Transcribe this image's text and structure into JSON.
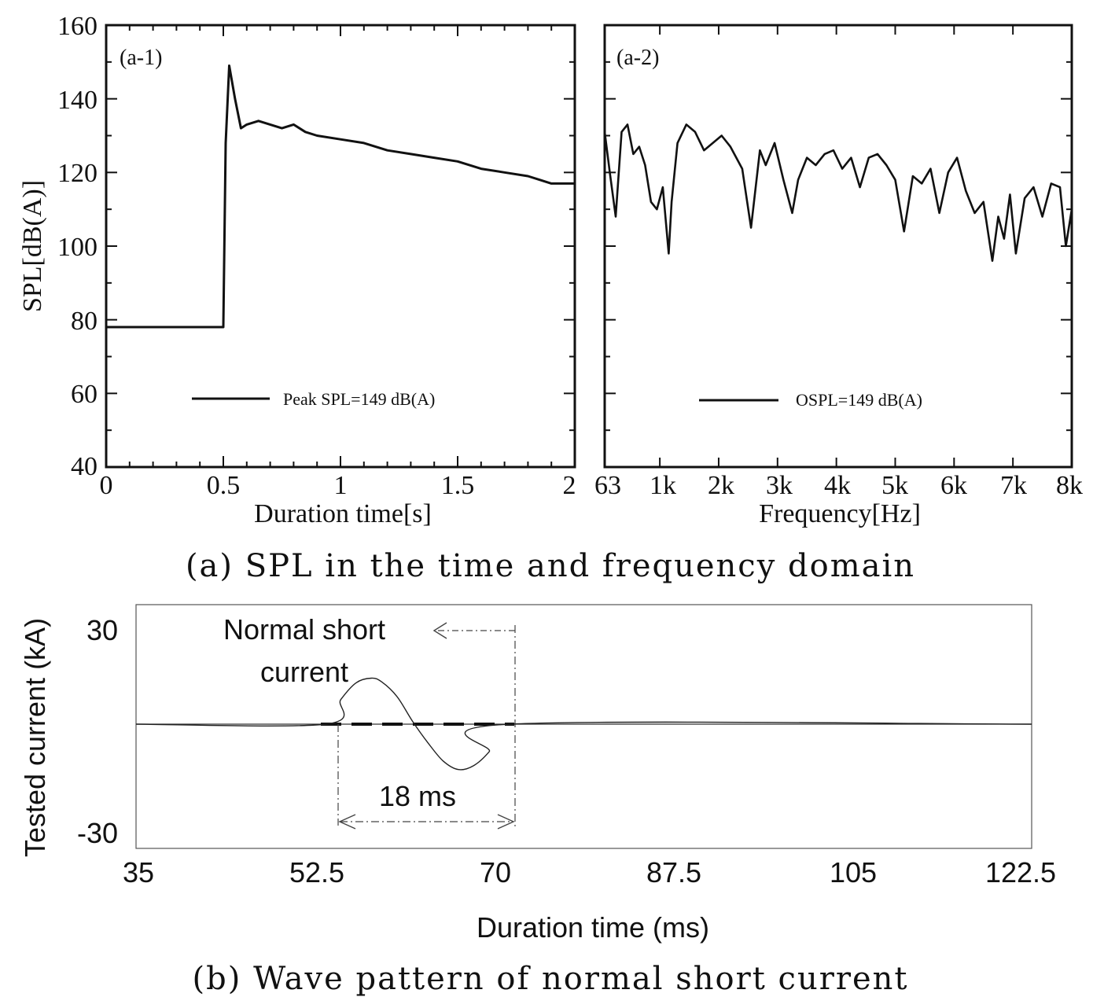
{
  "captions": {
    "top": "(a) SPL in the time and frequency domain",
    "bottom": "(b) Wave pattern of normal short current"
  },
  "colors": {
    "line": "#111111",
    "thin_line": "#333333",
    "background": "#ffffff"
  },
  "chart_data": [
    {
      "id": "a-1",
      "type": "line",
      "panel_label": "(a-1)",
      "title": "",
      "xlabel": "Duration time[s]",
      "ylabel": "SPL[dB(A)]",
      "xlim": [
        0,
        2
      ],
      "ylim": [
        40,
        160
      ],
      "x_ticks": [
        "0",
        "0.5",
        "1",
        "1.5",
        "2"
      ],
      "y_ticks": [
        "40",
        "60",
        "80",
        "100",
        "120",
        "140",
        "160"
      ],
      "legend": "Peak SPL=149 dB(A)",
      "legend_position": "bottom-right",
      "series": [
        {
          "x": [
            0,
            0.1,
            0.2,
            0.3,
            0.4,
            0.49,
            0.5,
            0.51,
            0.525,
            0.55,
            0.575,
            0.6,
            0.65,
            0.7,
            0.75,
            0.8,
            0.85,
            0.9,
            1.0,
            1.1,
            1.2,
            1.3,
            1.4,
            1.5,
            1.6,
            1.7,
            1.8,
            1.85,
            1.9,
            1.95,
            2.0
          ],
          "y": [
            78,
            78,
            78,
            78,
            78,
            78,
            78,
            128,
            149,
            140,
            132,
            133,
            134,
            133,
            132,
            133,
            131,
            130,
            129,
            128,
            126,
            125,
            124,
            123,
            121,
            120,
            119,
            118,
            117,
            117,
            117
          ]
        }
      ]
    },
    {
      "id": "a-2",
      "type": "line",
      "panel_label": "(a-2)",
      "title": "",
      "xlabel": "Frequency[Hz]",
      "ylabel": "",
      "xlim": [
        63,
        8000
      ],
      "ylim": [
        40,
        160
      ],
      "x_ticks": [
        "63",
        "1k",
        "2k",
        "3k",
        "4k",
        "5k",
        "6k",
        "7k",
        "8k"
      ],
      "y_ticks": [
        "40",
        "60",
        "80",
        "100",
        "120",
        "140",
        "160"
      ],
      "legend": "OSPL=149 dB(A)",
      "legend_position": "bottom-right",
      "series": [
        {
          "x": [
            63,
            150,
            250,
            350,
            450,
            550,
            650,
            750,
            850,
            950,
            1050,
            1150,
            1200,
            1300,
            1450,
            1600,
            1750,
            1900,
            2050,
            2200,
            2400,
            2550,
            2700,
            2800,
            2950,
            3100,
            3250,
            3350,
            3500,
            3650,
            3800,
            3950,
            4100,
            4250,
            4400,
            4550,
            4700,
            4850,
            5000,
            5150,
            5300,
            5450,
            5600,
            5750,
            5900,
            6050,
            6200,
            6350,
            6500,
            6650,
            6750,
            6850,
            6950,
            7050,
            7200,
            7350,
            7500,
            7650,
            7800,
            7900,
            8000
          ],
          "y": [
            131,
            120,
            108,
            131,
            133,
            125,
            127,
            122,
            112,
            110,
            116,
            98,
            112,
            128,
            133,
            131,
            126,
            128,
            130,
            127,
            121,
            105,
            126,
            122,
            128,
            118,
            109,
            118,
            124,
            122,
            125,
            126,
            121,
            124,
            116,
            124,
            125,
            122,
            118,
            104,
            119,
            117,
            121,
            109,
            120,
            124,
            115,
            109,
            112,
            96,
            108,
            102,
            114,
            98,
            113,
            116,
            108,
            117,
            116,
            100,
            110
          ]
        }
      ]
    },
    {
      "id": "b",
      "type": "line",
      "title": "",
      "xlabel": "Duration time (ms)",
      "ylabel": "Tested current (kA)",
      "xlim": [
        35,
        122.5
      ],
      "ylim": [
        -30,
        30
      ],
      "x_ticks": [
        "35",
        "52.5",
        "70",
        "87.5",
        "105",
        "122.5"
      ],
      "y_ticks": [
        "30",
        "-30"
      ],
      "annotations": {
        "label_line1": "Normal short",
        "label_line2": "current",
        "duration": "18 ms"
      },
      "series": [
        {
          "x": [
            35,
            53.5,
            55,
            56.5,
            58,
            59,
            60.5,
            62,
            63.5,
            65,
            66.5,
            68,
            69.5,
            71.5,
            122.5
          ],
          "y": [
            0,
            0,
            8,
            13.5,
            15,
            13.8,
            9,
            1,
            -6,
            -12,
            -14.8,
            -13.5,
            -9,
            0,
            0
          ]
        }
      ]
    }
  ]
}
